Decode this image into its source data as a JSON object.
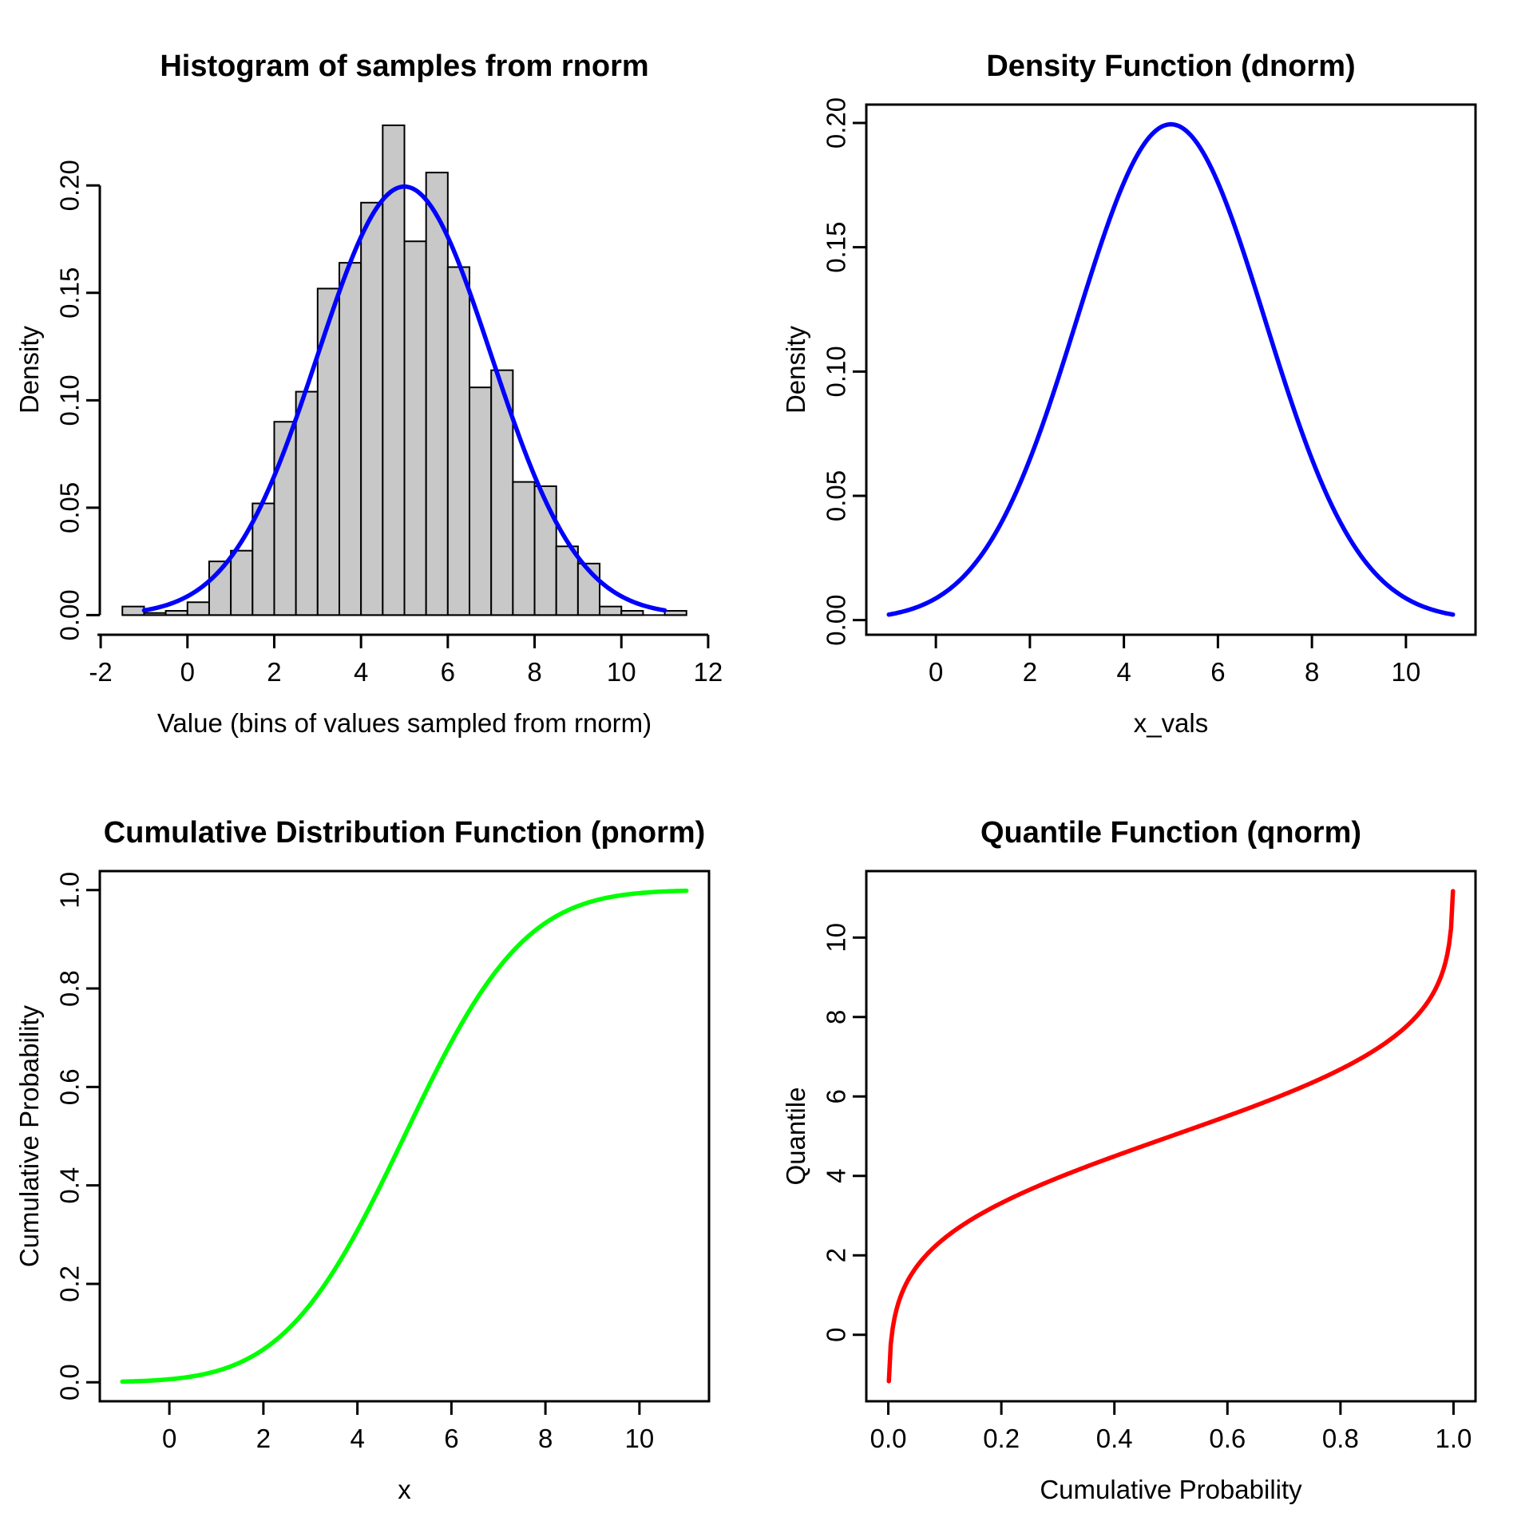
{
  "figure": {
    "background": "#FFFFFF",
    "text_color": "#000000",
    "axis_color": "#000000"
  },
  "panels": [
    {
      "title": "Histogram of samples from rnorm",
      "xlabel": "Value (bins of values sampled from rnorm)",
      "ylabel": "Density"
    },
    {
      "title": "Density Function (dnorm)",
      "xlabel": "x_vals",
      "ylabel": "Density"
    },
    {
      "title": "Cumulative Distribution Function (pnorm)",
      "xlabel": "x",
      "ylabel": "Cumulative Probability"
    },
    {
      "title": "Quantile Function (qnorm)",
      "xlabel": "Cumulative Probability",
      "ylabel": "Quantile"
    }
  ],
  "chart_data": [
    {
      "type": "bar",
      "subtype": "histogram-with-density-curve",
      "title": "Histogram of samples from rnorm",
      "xlabel": "Value (bins of values sampled from rnorm)",
      "ylabel": "Density",
      "bin_width": 0.5,
      "bin_starts": [
        -1.5,
        -1.0,
        -0.5,
        0.0,
        0.5,
        1.0,
        1.5,
        2.0,
        2.5,
        3.0,
        3.5,
        4.0,
        4.5,
        5.0,
        5.5,
        6.0,
        6.5,
        7.0,
        7.5,
        8.0,
        8.5,
        9.0,
        9.5,
        10.0,
        10.5,
        11.0
      ],
      "densities": [
        0.004,
        0.001,
        0.002,
        0.006,
        0.025,
        0.03,
        0.052,
        0.09,
        0.104,
        0.152,
        0.164,
        0.192,
        0.228,
        0.174,
        0.206,
        0.162,
        0.106,
        0.114,
        0.062,
        0.06,
        0.032,
        0.024,
        0.004,
        0.002,
        0.0,
        0.002
      ],
      "bar_fill": "#C8C8C8",
      "bar_stroke": "#000000",
      "overlay_curve": {
        "type": "line",
        "shape": "normal-pdf",
        "mean": 5,
        "sd": 2,
        "x_range": [
          -1,
          11
        ],
        "color": "#0000FF"
      },
      "x_ticks": {
        "values": [
          -2,
          0,
          2,
          4,
          6,
          8,
          10,
          12
        ],
        "labels": [
          "-2",
          "0",
          "2",
          "4",
          "6",
          "8",
          "10",
          "12"
        ]
      },
      "y_ticks": {
        "values": [
          0,
          0.05,
          0.1,
          0.15,
          0.2
        ],
        "labels": [
          "0.00",
          "0.05",
          "0.10",
          "0.15",
          "0.20"
        ]
      },
      "x_data_range": [
        -1.5,
        11.5
      ],
      "y_data_range": [
        0,
        0.2285
      ],
      "box": false,
      "grid": false,
      "legend": "none"
    },
    {
      "type": "line",
      "shape": "normal-pdf",
      "mean": 5,
      "sd": 2,
      "x_range": [
        -1,
        11
      ],
      "color": "#0000FF",
      "title": "Density Function (dnorm)",
      "xlabel": "x_vals",
      "ylabel": "Density",
      "x_ticks": {
        "values": [
          0,
          2,
          4,
          6,
          8,
          10
        ],
        "labels": [
          "0",
          "2",
          "4",
          "6",
          "8",
          "10"
        ]
      },
      "y_ticks": {
        "values": [
          0,
          0.05,
          0.1,
          0.15,
          0.2
        ],
        "labels": [
          "0.00",
          "0.05",
          "0.10",
          "0.15",
          "0.20"
        ]
      },
      "x_data_range": [
        -1,
        11
      ],
      "y_data_range": [
        0.002,
        0.1995
      ],
      "box": true,
      "grid": false,
      "legend": "none"
    },
    {
      "type": "line",
      "shape": "normal-cdf",
      "mean": 5,
      "sd": 2,
      "x_range": [
        -1,
        11
      ],
      "color": "#00FF00",
      "title": "Cumulative Distribution Function (pnorm)",
      "xlabel": "x",
      "ylabel": "Cumulative Probability",
      "x_ticks": {
        "values": [
          0,
          2,
          4,
          6,
          8,
          10
        ],
        "labels": [
          "0",
          "2",
          "4",
          "6",
          "8",
          "10"
        ]
      },
      "y_ticks": {
        "values": [
          0,
          0.2,
          0.4,
          0.6,
          0.8,
          1.0
        ],
        "labels": [
          "0.0",
          "0.2",
          "0.4",
          "0.6",
          "0.8",
          "1.0"
        ]
      },
      "x_data_range": [
        -1,
        11
      ],
      "y_data_range": [
        0.00135,
        0.99865
      ],
      "box": true,
      "grid": false,
      "legend": "none"
    },
    {
      "type": "line",
      "shape": "normal-quantile",
      "mean": 5,
      "sd": 2,
      "p_range": [
        0.001,
        0.999
      ],
      "color": "#FF0000",
      "title": "Quantile Function (qnorm)",
      "xlabel": "Cumulative Probability",
      "ylabel": "Quantile",
      "x_ticks": {
        "values": [
          0,
          0.2,
          0.4,
          0.6,
          0.8,
          1.0
        ],
        "labels": [
          "0.0",
          "0.2",
          "0.4",
          "0.6",
          "0.8",
          "1.0"
        ]
      },
      "y_ticks": {
        "values": [
          0,
          2,
          4,
          6,
          8,
          10
        ],
        "labels": [
          "0",
          "2",
          "4",
          "6",
          "8",
          "10"
        ]
      },
      "x_data_range": [
        0.001,
        0.999
      ],
      "y_data_range": [
        -1.18,
        11.18
      ],
      "box": true,
      "grid": false,
      "legend": "none"
    }
  ]
}
